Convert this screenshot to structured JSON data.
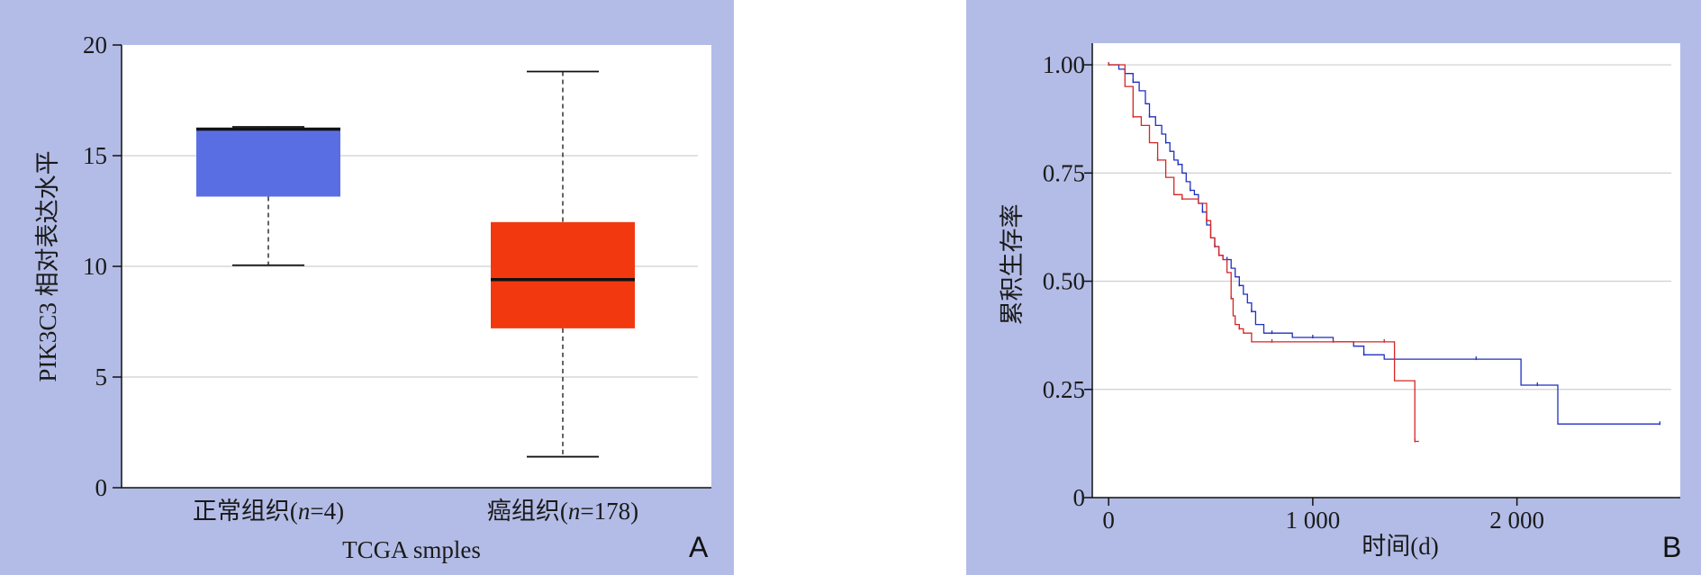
{
  "chart_data": [
    {
      "panel_label": "A",
      "type": "box",
      "xlabel": "TCGA smples",
      "ylabel": "PIK3C3 相对表达水平",
      "ylim": [
        0,
        20
      ],
      "yticks": [
        0,
        5,
        10,
        15,
        20
      ],
      "grid": true,
      "categories": [
        "正常组织(n=4)",
        "癌组织(n=178)"
      ],
      "boxes": [
        {
          "label": "正常组织(n=4)",
          "min": 10.05,
          "q1": 13.15,
          "median": 16.2,
          "q3": 16.25,
          "max": 16.3,
          "color": "#5a6ee4"
        },
        {
          "label": "癌组织(n=178)",
          "min": 1.4,
          "q1": 7.2,
          "median": 9.4,
          "q3": 12.0,
          "max": 18.8,
          "color": "#f2380f"
        }
      ]
    },
    {
      "panel_label": "B",
      "type": "line",
      "xlabel": "时间(d)",
      "ylabel": "累积生存率",
      "xlim": [
        -80,
        2800
      ],
      "ylim": [
        0,
        1.05
      ],
      "xticks": [
        0,
        1000,
        2000
      ],
      "xtick_labels": [
        "0",
        "1 000",
        "2 000"
      ],
      "yticks": [
        0,
        0.25,
        0.5,
        0.75,
        1.0
      ],
      "ytick_labels": [
        "0",
        "0.25",
        "0.50",
        "0.75",
        "1.00"
      ],
      "grid": true,
      "series": [
        {
          "color": "#1f2fbf",
          "x": [
            0,
            50,
            80,
            120,
            150,
            180,
            200,
            230,
            260,
            280,
            300,
            320,
            340,
            360,
            380,
            400,
            420,
            440,
            460,
            480,
            500,
            520,
            540,
            560,
            580,
            600,
            620,
            640,
            660,
            680,
            700,
            720,
            760,
            800,
            850,
            900,
            1000,
            1100,
            1200,
            1250,
            1350,
            1500,
            1800,
            2000,
            2020,
            2100,
            2200,
            2600,
            2700
          ],
          "y": [
            1.0,
            0.99,
            0.98,
            0.96,
            0.94,
            0.91,
            0.88,
            0.86,
            0.84,
            0.82,
            0.8,
            0.78,
            0.77,
            0.75,
            0.73,
            0.71,
            0.7,
            0.68,
            0.66,
            0.63,
            0.6,
            0.58,
            0.56,
            0.55,
            0.55,
            0.53,
            0.51,
            0.49,
            0.47,
            0.45,
            0.43,
            0.4,
            0.38,
            0.38,
            0.38,
            0.37,
            0.37,
            0.36,
            0.35,
            0.33,
            0.32,
            0.32,
            0.32,
            0.32,
            0.26,
            0.26,
            0.17,
            0.17,
            0.17
          ]
        },
        {
          "color": "#d62525",
          "x": [
            0,
            40,
            80,
            120,
            160,
            200,
            240,
            280,
            320,
            360,
            400,
            440,
            480,
            500,
            520,
            540,
            560,
            580,
            600,
            610,
            620,
            640,
            660,
            700,
            800,
            900,
            1000,
            1100,
            1200,
            1300,
            1350,
            1400,
            1460,
            1500,
            1520
          ],
          "y": [
            1.0,
            1.0,
            0.95,
            0.88,
            0.86,
            0.82,
            0.78,
            0.74,
            0.7,
            0.69,
            0.69,
            0.68,
            0.64,
            0.6,
            0.58,
            0.56,
            0.55,
            0.52,
            0.46,
            0.42,
            0.4,
            0.39,
            0.38,
            0.36,
            0.36,
            0.36,
            0.36,
            0.36,
            0.36,
            0.36,
            0.36,
            0.27,
            0.27,
            0.13,
            0.13
          ]
        }
      ]
    }
  ]
}
